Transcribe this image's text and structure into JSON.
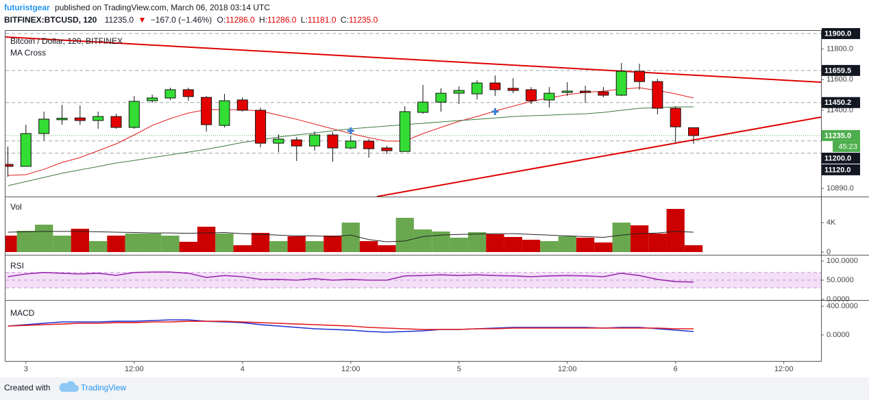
{
  "header": {
    "author": "futuristgear",
    "published": "published on TradingView.com, March 06, 2018 03:14 UTC",
    "symbol": "BITFINEX:BTCUSD, 120",
    "last": "11235.0",
    "direction": "▼",
    "change": "−167.0 (−1.46%)",
    "ohlc": [
      {
        "label": "O:",
        "value": "11286.0"
      },
      {
        "label": "H:",
        "value": "11286.0"
      },
      {
        "label": "L:",
        "value": "11181.0"
      },
      {
        "label": "C:",
        "value": "11235.0"
      }
    ]
  },
  "footer": {
    "created": "Created with",
    "brand": "TradingView"
  },
  "chart_data": [
    {
      "type": "candlestick",
      "title": "Bitcoin / Dollar, 120, BITFINEX",
      "subtitle": "MA Cross",
      "categories": [
        null,
        "3",
        null,
        null,
        null,
        null,
        null,
        "12:00",
        null,
        null,
        null,
        null,
        null,
        "4",
        null,
        null,
        null,
        null,
        null,
        "12:00",
        null,
        null,
        null,
        null,
        null,
        "5",
        null,
        null,
        null,
        null,
        null,
        "12:00",
        null,
        null,
        null,
        null,
        null,
        "6",
        null,
        null,
        null,
        null,
        null,
        "12:00",
        null,
        null
      ],
      "open": [
        11047,
        11034,
        11248,
        11338,
        11350,
        11333,
        11359,
        11288,
        11462,
        11480,
        11534,
        11484,
        11301,
        11467,
        11400,
        11185,
        11207,
        11167,
        11239,
        11154,
        11199,
        11154,
        11131,
        11386,
        11453,
        11511,
        11507,
        11578,
        11543,
        11534,
        11467,
        11516,
        11525,
        11520,
        11498,
        11654,
        11587,
        11413,
        11286,
        null,
        null,
        null,
        null,
        null,
        null,
        null
      ],
      "high": [
        11163,
        11306,
        11391,
        11435,
        11431,
        11391,
        11377,
        11493,
        11502,
        11547,
        11547,
        11493,
        11507,
        11484,
        11417,
        11243,
        11225,
        11261,
        11257,
        11234,
        11212,
        11167,
        11426,
        11565,
        11543,
        11556,
        11596,
        11627,
        11610,
        11551,
        11551,
        11583,
        11560,
        11551,
        11708,
        11703,
        11605,
        11426,
        11286,
        null,
        null,
        null,
        null,
        null,
        null,
        null
      ],
      "low": [
        10966,
        11034,
        11203,
        11306,
        11306,
        11279,
        11279,
        11279,
        11449,
        11467,
        11462,
        11261,
        11288,
        11391,
        11158,
        11127,
        11069,
        11136,
        11065,
        11145,
        11091,
        11114,
        11131,
        11377,
        11391,
        11440,
        11471,
        11493,
        11511,
        11440,
        11417,
        11493,
        11449,
        11484,
        11493,
        11534,
        11373,
        11185,
        11181,
        null,
        null,
        null,
        null,
        null,
        null,
        null
      ],
      "close": [
        11034,
        11248,
        11342,
        11348,
        11333,
        11359,
        11288,
        11458,
        11480,
        11534,
        11489,
        11306,
        11462,
        11400,
        11185,
        11212,
        11167,
        11239,
        11154,
        11199,
        11149,
        11136,
        11391,
        11453,
        11511,
        11529,
        11578,
        11534,
        11529,
        11462,
        11511,
        11525,
        11516,
        11498,
        11654,
        11587,
        11413,
        11292,
        11235,
        null,
        null,
        null,
        null,
        null,
        null,
        null
      ],
      "up_color": "#33dd33",
      "down_color": "#e50000",
      "series": [
        {
          "color": "#e31a1c",
          "values": [
            10975,
            10980,
            11015,
            11060,
            11091,
            11136,
            11181,
            11239,
            11301,
            11346,
            11382,
            11404,
            11404,
            11404,
            11395,
            11368,
            11341,
            11310,
            11279,
            11248,
            11221,
            11199,
            11199,
            11248,
            11288,
            11328,
            11359,
            11395,
            11426,
            11458,
            11480,
            11502,
            11516,
            11525,
            11538,
            11547,
            11529,
            11507,
            11480,
            null,
            null,
            null,
            null,
            null,
            null,
            null
          ]
        },
        {
          "color": "#3d7a3d",
          "values": [
            10908,
            10935,
            10962,
            10989,
            11011,
            11033,
            11056,
            11073,
            11091,
            11109,
            11127,
            11145,
            11167,
            11190,
            11207,
            11225,
            11239,
            11252,
            11266,
            11279,
            11288,
            11297,
            11306,
            11315,
            11324,
            11333,
            11341,
            11350,
            11359,
            11364,
            11368,
            11373,
            11377,
            11386,
            11400,
            11413,
            11417,
            11422,
            11422,
            null,
            null,
            null,
            null,
            null,
            null,
            null
          ]
        }
      ],
      "crosses": {
        "color": "#3a7bd5",
        "values": [
          null,
          null,
          null,
          null,
          null,
          null,
          null,
          null,
          null,
          null,
          null,
          null,
          null,
          null,
          null,
          null,
          null,
          null,
          null,
          11266,
          null,
          null,
          null,
          null,
          null,
          null,
          null,
          11391,
          null,
          null,
          null,
          null,
          null,
          null,
          null,
          null,
          null,
          null,
          null,
          null,
          null,
          null,
          null,
          null,
          null,
          null
        ]
      },
      "trendlines": {
        "color": "#e00000",
        "lines": [
          {
            "start": [
              -0.13,
              11878
            ],
            "end": [
              45.06,
              11583
            ]
          },
          {
            "start": [
              20.45,
              10837
            ],
            "end": [
              45.06,
              11355
            ]
          }
        ]
      },
      "ylim": [
        10837,
        11918
      ],
      "yticks": [
        {
          "value": 11800,
          "label": "11800.0"
        },
        {
          "value": 11600,
          "label": "11600.0"
        },
        {
          "value": 11400,
          "label": "11400.0"
        },
        {
          "value": 10890,
          "label": "10890.0"
        }
      ],
      "price_labels": [
        {
          "value": 11900,
          "label": "11900.0"
        },
        {
          "value": 11659.5,
          "label": "11659.5"
        },
        {
          "value": 11450.2,
          "label": "11450.2"
        },
        {
          "value": 11200,
          "label": "11200.0"
        },
        {
          "value": 11120,
          "label": "11120.0"
        }
      ],
      "price_label_color": "#131722",
      "current_price": {
        "value": 11235,
        "label": "11235.0",
        "countdown": "45:23",
        "color": "#4cae4c"
      }
    },
    {
      "type": "bar",
      "title": "Vol",
      "values": [
        2233,
        2884,
        3721,
        2233,
        3163,
        1488,
        2233,
        2512,
        2512,
        2233,
        1395,
        3442,
        2512,
        930,
        2605,
        1488,
        2140,
        1488,
        2233,
        4000,
        1488,
        930,
        4651,
        3070,
        2791,
        1953,
        2698,
        2419,
        2047,
        1674,
        1488,
        2140,
        1953,
        1302,
        4000,
        3628,
        2512,
        5860,
        930,
        null,
        null,
        null,
        null,
        null,
        null,
        null
      ],
      "up_color": "#6aa84f",
      "down_color": "#cc0000",
      "series": [
        {
          "color": "#222222",
          "values": [
            2700,
            2750,
            2800,
            2800,
            2800,
            2750,
            2700,
            2650,
            2600,
            2600,
            2550,
            2600,
            2650,
            2500,
            2400,
            2300,
            2200,
            2200,
            2100,
            2300,
            1700,
            1400,
            1500,
            2100,
            2300,
            2400,
            2450,
            2500,
            2500,
            2400,
            2300,
            2200,
            2100,
            2000,
            2300,
            2500,
            2600,
            2800,
            2700,
            null,
            null,
            null,
            null,
            null,
            null,
            null
          ]
        }
      ],
      "ylim": [
        -370,
        7440
      ],
      "yticks": [
        0,
        {
          "value": 4000,
          "label": "4K"
        }
      ]
    },
    {
      "type": "line",
      "title": "RSI",
      "series": [
        {
          "color": "#9c27b0",
          "values": [
            59,
            66,
            70,
            68,
            66,
            68,
            62.5,
            70,
            71,
            71,
            68,
            57,
            62,
            59,
            52,
            52,
            50,
            54,
            50,
            52,
            50,
            50,
            61,
            62,
            64,
            62,
            64,
            62,
            61,
            59,
            61,
            62,
            61,
            59,
            68,
            62,
            52,
            46,
            45,
            null,
            null,
            null,
            null,
            null,
            null,
            null
          ]
        }
      ],
      "levels": [
        70,
        50,
        30
      ],
      "band_color": "#f3e0f7",
      "level_color": "#b36bc2",
      "ylim": [
        -1.8,
        112.5
      ],
      "yticks": [
        {
          "value": 100,
          "label": "100.0000"
        },
        {
          "value": 50,
          "label": "50.0000"
        },
        {
          "value": 0,
          "label": "0.0000"
        }
      ]
    },
    {
      "type": "line",
      "title": "MACD",
      "series": [
        {
          "color": "#1f2fd0",
          "values": [
            124,
            143,
            162,
            181,
            181,
            181,
            190,
            190,
            200,
            210,
            210,
            190,
            181,
            171,
            143,
            124,
            105,
            86,
            76,
            67,
            48,
            38,
            48,
            57,
            76,
            76,
            86,
            95,
            105,
            105,
            105,
            105,
            105,
            95,
            105,
            105,
            86,
            67,
            48,
            null,
            null,
            null,
            null,
            null,
            null,
            null
          ]
        },
        {
          "color": "#e31a1c",
          "values": [
            124,
            133,
            143,
            152,
            162,
            162,
            171,
            171,
            181,
            181,
            190,
            190,
            190,
            181,
            171,
            162,
            152,
            143,
            133,
            124,
            105,
            95,
            86,
            76,
            76,
            76,
            86,
            86,
            95,
            95,
            95,
            95,
            95,
            95,
            95,
            95,
            95,
            86,
            86,
            null,
            null,
            null,
            null,
            null,
            null,
            null
          ]
        }
      ],
      "ylim": [
        -362,
        467
      ],
      "yticks": [
        {
          "value": 400,
          "label": "400.0000"
        },
        {
          "value": 0,
          "label": "0.0000"
        }
      ]
    }
  ]
}
